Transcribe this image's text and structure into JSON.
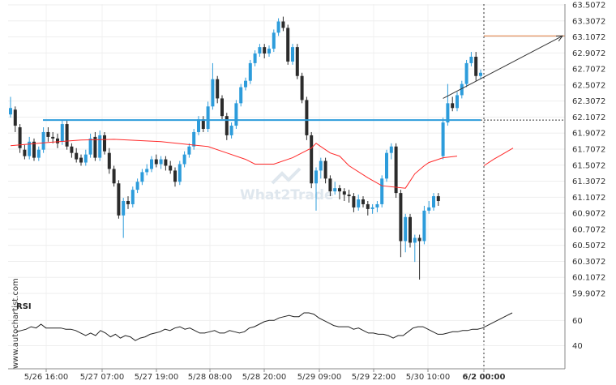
{
  "watermark": "What2Trade",
  "side_text": "www.autochartist.com",
  "colors": {
    "up": "#2d9cdb",
    "down": "#2b2b2b",
    "support": "#2d9cdb",
    "ma": "#ff2a2a",
    "resistance": "#e07a3c",
    "arrow": "#333333",
    "rsi": "#222222"
  },
  "chart_data": {
    "type": "candlestick",
    "y_ticks": [
      "63.5072",
      "63.3072",
      "63.1072",
      "62.9072",
      "62.7072",
      "62.5072",
      "62.3072",
      "62.1072",
      "61.9072",
      "61.7072",
      "61.5072",
      "61.3072",
      "61.1072",
      "60.9072",
      "60.7072",
      "60.5072",
      "60.3072",
      "60.1072",
      "59.9072"
    ],
    "ylim": [
      59.9072,
      63.5072
    ],
    "x_ticks": [
      "5/26 16:00",
      "5/27 07:00",
      "5/27 19:00",
      "5/28 08:00",
      "5/28 20:00",
      "5/29 09:00",
      "5/29 22:00",
      "5/30 10:00",
      "6/2 00:00"
    ],
    "support_level": 62.07,
    "resistance_level": 63.12,
    "candles": [
      [
        62.14,
        62.22,
        62.36,
        62.1
      ],
      [
        62.2,
        62.0,
        62.24,
        61.92
      ],
      [
        61.98,
        61.72,
        62.02,
        61.66
      ],
      [
        61.7,
        61.62,
        61.76,
        61.58
      ],
      [
        61.62,
        61.8,
        61.86,
        61.58
      ],
      [
        61.8,
        61.6,
        61.84,
        61.56
      ],
      [
        61.6,
        61.7,
        61.74,
        61.56
      ],
      [
        61.7,
        61.92,
        61.98,
        61.66
      ],
      [
        61.92,
        61.86,
        61.98,
        61.8
      ],
      [
        61.86,
        61.84,
        61.92,
        61.78
      ],
      [
        61.84,
        61.78,
        61.9,
        61.72
      ],
      [
        61.8,
        62.02,
        62.06,
        61.76
      ],
      [
        62.02,
        61.74,
        62.06,
        61.7
      ],
      [
        61.74,
        61.66,
        61.78,
        61.6
      ],
      [
        61.66,
        61.58,
        61.72,
        61.54
      ],
      [
        61.6,
        61.54,
        61.64,
        61.5
      ],
      [
        61.54,
        61.64,
        61.7,
        61.5
      ],
      [
        61.64,
        61.84,
        61.9,
        61.6
      ],
      [
        61.86,
        61.6,
        61.92,
        61.56
      ],
      [
        61.6,
        61.88,
        61.94,
        61.56
      ],
      [
        61.88,
        61.68,
        61.92,
        61.64
      ],
      [
        61.66,
        61.46,
        61.72,
        61.4
      ],
      [
        61.46,
        61.28,
        61.5,
        61.24
      ],
      [
        61.28,
        60.88,
        61.32,
        60.84
      ],
      [
        60.88,
        61.06,
        61.1,
        60.6
      ],
      [
        61.06,
        61.02,
        61.12,
        60.96
      ],
      [
        61.02,
        61.2,
        61.24,
        60.98
      ],
      [
        61.2,
        61.3,
        61.34,
        61.16
      ],
      [
        61.3,
        61.42,
        61.46,
        61.26
      ],
      [
        61.42,
        61.46,
        61.52,
        61.38
      ],
      [
        61.46,
        61.58,
        61.62,
        61.42
      ],
      [
        61.58,
        61.52,
        61.64,
        61.48
      ],
      [
        61.52,
        61.58,
        61.62,
        61.46
      ],
      [
        61.58,
        61.5,
        61.62,
        61.44
      ],
      [
        61.5,
        61.44,
        61.56,
        61.4
      ],
      [
        61.44,
        61.3,
        61.48,
        61.24
      ],
      [
        61.3,
        61.52,
        61.56,
        61.26
      ],
      [
        61.52,
        61.64,
        61.68,
        61.48
      ],
      [
        61.64,
        61.74,
        61.78,
        61.6
      ],
      [
        61.74,
        61.92,
        61.96,
        61.7
      ],
      [
        61.92,
        62.08,
        62.12,
        61.88
      ],
      [
        62.08,
        61.96,
        62.12,
        61.92
      ],
      [
        61.96,
        62.24,
        62.3,
        61.92
      ],
      [
        62.24,
        62.58,
        62.78,
        62.2
      ],
      [
        62.58,
        62.34,
        62.62,
        62.28
      ],
      [
        62.34,
        62.12,
        62.38,
        62.08
      ],
      [
        62.12,
        61.88,
        62.16,
        61.82
      ],
      [
        61.88,
        62.0,
        62.04,
        61.84
      ],
      [
        62.0,
        62.28,
        62.32,
        61.96
      ],
      [
        62.28,
        62.48,
        62.52,
        62.24
      ],
      [
        62.48,
        62.56,
        62.6,
        62.44
      ],
      [
        62.56,
        62.78,
        62.82,
        62.52
      ],
      [
        62.78,
        62.9,
        62.94,
        62.74
      ],
      [
        62.9,
        62.98,
        63.02,
        62.86
      ],
      [
        62.98,
        62.9,
        63.02,
        62.84
      ],
      [
        62.9,
        62.96,
        63.0,
        62.86
      ],
      [
        62.96,
        63.16,
        63.2,
        62.92
      ],
      [
        63.16,
        63.3,
        63.34,
        63.12
      ],
      [
        63.3,
        63.22,
        63.36,
        63.18
      ],
      [
        63.22,
        62.8,
        63.26,
        62.76
      ],
      [
        62.8,
        62.98,
        63.02,
        62.76
      ],
      [
        62.98,
        62.62,
        63.02,
        62.58
      ],
      [
        62.62,
        62.32,
        62.66,
        62.28
      ],
      [
        62.32,
        61.88,
        62.36,
        61.82
      ],
      [
        61.88,
        61.28,
        61.92,
        61.22
      ],
      [
        61.28,
        61.44,
        61.48,
        60.94
      ],
      [
        61.44,
        61.56,
        61.6,
        61.34
      ],
      [
        61.56,
        61.34,
        61.6,
        61.28
      ],
      [
        61.34,
        61.18,
        61.38,
        61.12
      ],
      [
        61.18,
        61.22,
        61.3,
        61.14
      ],
      [
        61.22,
        61.18,
        61.26,
        61.08
      ],
      [
        61.18,
        61.14,
        61.22,
        61.06
      ],
      [
        61.14,
        61.12,
        61.2,
        61.04
      ],
      [
        61.12,
        60.98,
        61.16,
        60.92
      ],
      [
        60.98,
        61.08,
        61.14,
        60.94
      ],
      [
        61.08,
        61.02,
        61.12,
        60.98
      ],
      [
        61.02,
        60.96,
        61.06,
        60.88
      ],
      [
        60.96,
        60.98,
        61.02,
        60.9
      ],
      [
        60.98,
        61.02,
        61.06,
        60.92
      ],
      [
        61.02,
        61.34,
        61.38,
        60.98
      ],
      [
        61.34,
        61.66,
        61.7,
        61.3
      ],
      [
        61.66,
        61.74,
        61.78,
        61.58
      ],
      [
        61.74,
        61.16,
        61.78,
        61.1
      ],
      [
        61.16,
        60.56,
        61.2,
        60.36
      ],
      [
        60.56,
        60.86,
        60.9,
        60.42
      ],
      [
        60.86,
        60.54,
        60.9,
        60.48
      ],
      [
        60.54,
        60.6,
        60.64,
        60.3
      ],
      [
        60.6,
        60.56,
        60.64,
        60.08
      ],
      [
        60.56,
        60.94,
        61.0,
        60.52
      ],
      [
        60.94,
        60.98,
        61.06,
        60.9
      ],
      [
        60.98,
        61.12,
        61.16,
        60.94
      ],
      [
        61.12,
        61.06,
        61.16,
        61.0
      ],
      [
        61.62,
        62.04,
        62.1,
        61.58
      ],
      [
        62.04,
        62.28,
        62.52,
        62.0
      ],
      [
        62.28,
        62.22,
        62.36,
        62.18
      ],
      [
        62.22,
        62.38,
        62.42,
        62.18
      ],
      [
        62.38,
        62.52,
        62.56,
        62.34
      ],
      [
        62.52,
        62.78,
        62.82,
        62.48
      ],
      [
        62.78,
        62.86,
        62.92,
        62.74
      ],
      [
        62.86,
        62.62,
        62.92,
        62.56
      ],
      [
        62.62,
        62.66,
        62.7,
        62.58
      ]
    ],
    "ma_path": [
      [
        0,
        61.75
      ],
      [
        8,
        61.79
      ],
      [
        15,
        61.82
      ],
      [
        22,
        61.83
      ],
      [
        32,
        61.8
      ],
      [
        42,
        61.74
      ],
      [
        46,
        61.66
      ],
      [
        50,
        61.58
      ],
      [
        52,
        61.52
      ],
      [
        56,
        61.52
      ],
      [
        60,
        61.6
      ],
      [
        64,
        61.72
      ],
      [
        65,
        61.78
      ],
      [
        66,
        61.74
      ],
      [
        68,
        61.66
      ],
      [
        70,
        61.62
      ],
      [
        72,
        61.5
      ],
      [
        76,
        61.35
      ],
      [
        79,
        61.25
      ],
      [
        84,
        61.22
      ],
      [
        86,
        61.4
      ],
      [
        88,
        61.5
      ],
      [
        89,
        61.54
      ],
      [
        92,
        61.6
      ],
      [
        95,
        61.62
      ]
    ],
    "ma_extension": [
      [
        92,
        61.5
      ],
      [
        93,
        61.58
      ],
      [
        94,
        61.65
      ],
      [
        95,
        61.72
      ]
    ],
    "pattern_arrow": [
      [
        92,
        62.34
      ],
      [
        99,
        63.12
      ]
    ],
    "rsi": {
      "label": "RSI",
      "y_ticks": [
        "60",
        "40"
      ],
      "ylim": [
        30,
        75
      ],
      "values": [
        51,
        52,
        53,
        55,
        54,
        57,
        54,
        54,
        54,
        54,
        53,
        53,
        52,
        50,
        48,
        50,
        48,
        52,
        50,
        47,
        49,
        46,
        48,
        47,
        44,
        46,
        47,
        49,
        50,
        51,
        53,
        52,
        54,
        55,
        53,
        54,
        52,
        50,
        50,
        51,
        52,
        50,
        50,
        52,
        51,
        50,
        51,
        54,
        55,
        57,
        59,
        60,
        60,
        62,
        63,
        64,
        63,
        63,
        66,
        66,
        65,
        62,
        60,
        58,
        56,
        55,
        55,
        55,
        53,
        54,
        52,
        50,
        50,
        49,
        49,
        48,
        46,
        48,
        48,
        51,
        54,
        55,
        55,
        53,
        51,
        49,
        49,
        50,
        51,
        51,
        52,
        52,
        53,
        53,
        54,
        56,
        58,
        60,
        62,
        64,
        66
      ]
    }
  }
}
